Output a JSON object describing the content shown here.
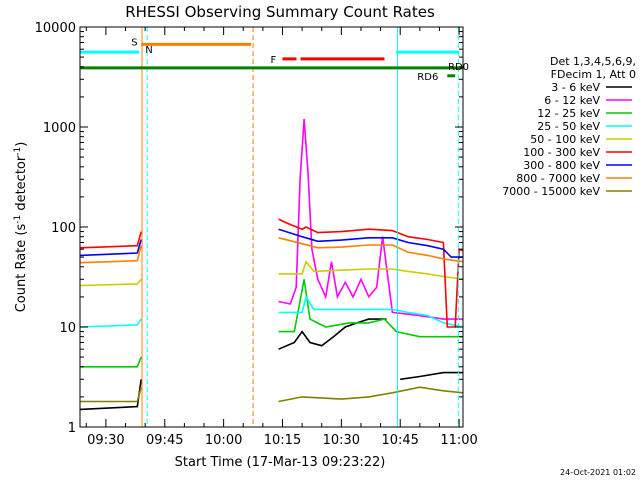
{
  "chart_data": {
    "type": "line",
    "title": "RHESSI Observing Summary Count Rates",
    "xlabel": "Start Time (17-Mar-13 09:23:22)",
    "ylabel_main": "Count Rate (s",
    "ylabel_sup1": "-1",
    "ylabel_mid": " detector",
    "ylabel_sup2": "-1",
    "ylabel_end": ")",
    "yscale": "log",
    "ylim": [
      1,
      10000
    ],
    "xlim_minutes": [
      23.4,
      121.0
    ],
    "x_ticks": [
      {
        "label": "09:30",
        "min": 30
      },
      {
        "label": "09:45",
        "min": 45
      },
      {
        "label": "10:00",
        "min": 60
      },
      {
        "label": "10:15",
        "min": 75
      },
      {
        "label": "10:30",
        "min": 90
      },
      {
        "label": "10:45",
        "min": 105
      },
      {
        "label": "11:00",
        "min": 120
      }
    ],
    "y_ticks": [
      {
        "label": "1",
        "v": 1
      },
      {
        "label": "10",
        "v": 10
      },
      {
        "label": "100",
        "v": 100
      },
      {
        "label": "1000",
        "v": 1000
      },
      {
        "label": "10000",
        "v": 10000
      }
    ],
    "legend_header": [
      "Det 1,3,4,5,6,9,",
      "FDecim 1, Att 0"
    ],
    "series": [
      {
        "name": "3 - 6 keV",
        "color": "#000000",
        "segments": [
          [
            [
              23.4,
              1.5
            ],
            [
              38,
              1.6
            ],
            [
              39,
              3
            ]
          ],
          [
            [
              74,
              6
            ],
            [
              78,
              7
            ],
            [
              80,
              9
            ],
            [
              82,
              7
            ],
            [
              85,
              6.5
            ],
            [
              88,
              8
            ],
            [
              91,
              10
            ],
            [
              94,
              11
            ],
            [
              97,
              12
            ],
            [
              100,
              12
            ],
            [
              101.5,
              12
            ]
          ],
          [
            [
              105,
              3
            ],
            [
              110,
              3.2
            ],
            [
              116,
              3.5
            ],
            [
              121,
              3.5
            ]
          ]
        ]
      },
      {
        "name": "6 - 12 keV",
        "color": "#ff00ff",
        "segments": [
          [
            [
              74,
              18
            ],
            [
              77,
              17
            ],
            [
              78.5,
              25
            ],
            [
              79.5,
              300
            ],
            [
              80.5,
              1200
            ],
            [
              81.5,
              350
            ],
            [
              82.5,
              60
            ],
            [
              84,
              30
            ],
            [
              86,
              20
            ],
            [
              87.5,
              45
            ],
            [
              89,
              20
            ],
            [
              91,
              28
            ],
            [
              93,
              20
            ],
            [
              95,
              30
            ],
            [
              97,
              20
            ],
            [
              99,
              25
            ],
            [
              100.5,
              80
            ],
            [
              101.5,
              40
            ],
            [
              103,
              14
            ],
            [
              110,
              13
            ],
            [
              116,
              12
            ],
            [
              121,
              12
            ]
          ]
        ]
      },
      {
        "name": "12 - 25 keV",
        "color": "#00cc00",
        "segments": [
          [
            [
              23.4,
              4
            ],
            [
              38,
              4
            ],
            [
              39,
              5
            ]
          ],
          [
            [
              74,
              9
            ],
            [
              78,
              9
            ],
            [
              80.5,
              30
            ],
            [
              82,
              12
            ],
            [
              86,
              10
            ],
            [
              92,
              11
            ],
            [
              97,
              11
            ],
            [
              101,
              12
            ],
            [
              104,
              9
            ],
            [
              110,
              8
            ],
            [
              116,
              8
            ],
            [
              121,
              8
            ]
          ]
        ]
      },
      {
        "name": "25 - 50 keV",
        "color": "#00ffff",
        "segments": [
          [
            [
              23.4,
              10
            ],
            [
              38,
              10.5
            ],
            [
              39,
              12
            ]
          ],
          [
            [
              74,
              14
            ],
            [
              80,
              14
            ],
            [
              81,
              20
            ],
            [
              83,
              15
            ],
            [
              90,
              15
            ],
            [
              100,
              15
            ],
            [
              103,
              15
            ],
            [
              107,
              14
            ],
            [
              112,
              13
            ],
            [
              116,
              11
            ],
            [
              121,
              10
            ]
          ]
        ]
      },
      {
        "name": "50 - 100 keV",
        "color": "#cccc00",
        "segments": [
          [
            [
              23.4,
              26
            ],
            [
              38,
              27
            ],
            [
              39,
              30
            ]
          ],
          [
            [
              74,
              34
            ],
            [
              80,
              34
            ],
            [
              81,
              45
            ],
            [
              83,
              36
            ],
            [
              90,
              37
            ],
            [
              97,
              38
            ],
            [
              103,
              38
            ],
            [
              107,
              36
            ],
            [
              112,
              34
            ],
            [
              116,
              32
            ],
            [
              121,
              30
            ]
          ]
        ]
      },
      {
        "name": "100 - 300 keV",
        "color": "#ff0000",
        "segments": [
          [
            [
              23.4,
              62
            ],
            [
              38,
              65
            ],
            [
              39,
              90
            ]
          ],
          [
            [
              74,
              120
            ],
            [
              76,
              110
            ],
            [
              80,
              95
            ],
            [
              81,
              100
            ],
            [
              84,
              88
            ],
            [
              90,
              90
            ],
            [
              97,
              95
            ],
            [
              103,
              92
            ],
            [
              107,
              80
            ],
            [
              112,
              75
            ],
            [
              116,
              70
            ],
            [
              117,
              10
            ],
            [
              119,
              10
            ],
            [
              120,
              60
            ],
            [
              121,
              58
            ]
          ]
        ]
      },
      {
        "name": "300 - 800 keV",
        "color": "#0000ff",
        "segments": [
          [
            [
              23.4,
              52
            ],
            [
              38,
              55
            ],
            [
              39,
              75
            ]
          ],
          [
            [
              74,
              95
            ],
            [
              80,
              80
            ],
            [
              84,
              72
            ],
            [
              90,
              74
            ],
            [
              97,
              78
            ],
            [
              103,
              78
            ],
            [
              107,
              70
            ],
            [
              112,
              65
            ],
            [
              116,
              60
            ],
            [
              118,
              50
            ],
            [
              121,
              50
            ]
          ]
        ]
      },
      {
        "name": "800 - 7000 keV",
        "color": "#ff8000",
        "segments": [
          [
            [
              23.4,
              44
            ],
            [
              38,
              46
            ],
            [
              39,
              65
            ]
          ],
          [
            [
              74,
              78
            ],
            [
              80,
              68
            ],
            [
              84,
              62
            ],
            [
              90,
              63
            ],
            [
              97,
              66
            ],
            [
              103,
              66
            ],
            [
              107,
              56
            ],
            [
              112,
              52
            ],
            [
              116,
              48
            ],
            [
              121,
              45
            ]
          ]
        ]
      },
      {
        "name": "7000 - 15000 keV",
        "color": "#808000",
        "segments": [
          [
            [
              23.4,
              1.8
            ],
            [
              38,
              1.8
            ],
            [
              39,
              2.5
            ]
          ],
          [
            [
              74,
              1.8
            ],
            [
              80,
              2
            ],
            [
              90,
              1.9
            ],
            [
              97,
              2
            ],
            [
              103,
              2.2
            ],
            [
              110,
              2.5
            ],
            [
              116,
              2.3
            ],
            [
              121,
              2.2
            ]
          ]
        ]
      }
    ],
    "annotations": {
      "flag_S": {
        "label": "S",
        "color": "#ff8000",
        "x0": 39,
        "x1": 67,
        "y": 6700
      },
      "flag_N": {
        "label": "N",
        "color": "#00ffff",
        "x0": 23.4,
        "x1": 38.5,
        "x1b": 104,
        "x2b": 120,
        "y": 5600
      },
      "flag_F": {
        "label": "F",
        "color": "#ff0000",
        "x0": 75,
        "x1": 101,
        "y": 4800
      },
      "flag_RD0": {
        "label": "RD0",
        "color": "#008000",
        "x0": 23.4,
        "x1": 121,
        "y": 3900
      },
      "flag_RD6": {
        "label": "RD6",
        "color": "#008000",
        "x0": 117,
        "x1": 119,
        "y": 3250
      },
      "night_boundaries": [
        {
          "x": 23.4,
          "color": "#00ffff",
          "style": "solid"
        },
        {
          "x": 39.2,
          "color": "#ff8000",
          "style": "solid"
        },
        {
          "x": 40.5,
          "color": "#00ffff",
          "style": "dash"
        },
        {
          "x": 67.5,
          "color": "#ff8000",
          "style": "dash"
        },
        {
          "x": 104.3,
          "color": "#00ffff",
          "style": "solid"
        },
        {
          "x": 119.8,
          "color": "#00ffff",
          "style": "dash"
        }
      ]
    },
    "footer_date": "24-Oct-2021 01:02",
    "grid": false,
    "legend_position": "right"
  }
}
